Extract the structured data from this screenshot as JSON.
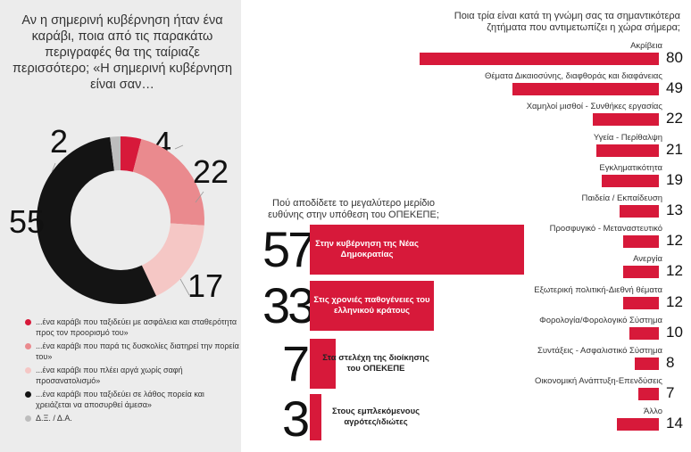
{
  "left": {
    "question": "Αν η σημερινή κυβέρνηση ήταν ένα καράβι, ποια από τις παρακάτω περιγραφές θα της ταίριαζε περισσότερο; «Η σημερινή κυβέρνηση είναι σαν…",
    "legend": [
      {
        "label": "...ένα καράβι που ταξιδεύει με ασφάλεια και σταθερότητα προς τον προορισμό του»",
        "color": "#d7193a"
      },
      {
        "label": "...ένα καράβι που παρά τις δυσκολίες διατηρεί την πορεία του»",
        "color": "#ea8a8e"
      },
      {
        "label": "...ένα καράβι που πλέει αργά χωρίς σαφή προσανατολισμό»",
        "color": "#f5c7c5"
      },
      {
        "label": "...ένα καράβι που ταξιδεύει σε λάθος πορεία και χρειάζεται να αποσυρθεί άμεσα»",
        "color": "#141414"
      },
      {
        "label": "Δ.Ξ. / Δ.Α.",
        "color": "#bdbdbd"
      }
    ]
  },
  "right": {
    "title": "Ποια τρία είναι κατά τη γνώμη σας τα σημαντικότερα ζητήματα που αντιμετωπίζει η χώρα σήμερα;"
  },
  "responsibility": {
    "title": "Πού αποδίδετε το μεγαλύτερο μερίδιο ευθύνης στην υπόθεση του ΟΠΕΚΕΠΕ;"
  },
  "chart_data": [
    {
      "type": "pie",
      "variant": "donut",
      "categories": [
        "...ένα καράβι που ταξιδεύει με ασφάλεια και σταθερότητα προς τον προορισμό του»",
        "...ένα καράβι που παρά τις δυσκολίες διατηρεί την πορεία του»",
        "...ένα καράβι που πλέει αργά χωρίς σαφή προσανατολισμό»",
        "...ένα καράβι που ταξιδεύει σε λάθος πορεία και χρειάζεται να αποσυρθεί άμεσα»",
        "Δ.Ξ. / Δ.Α."
      ],
      "values": [
        4,
        22,
        17,
        55,
        2
      ],
      "colors": [
        "#d7193a",
        "#ea8a8e",
        "#f5c7c5",
        "#141414",
        "#bdbdbd"
      ]
    },
    {
      "type": "bar",
      "orientation": "horizontal",
      "title": "Ποια τρία είναι κατά τη γνώμη σας τα σημαντικότερα ζητήματα που αντιμετωπίζει η χώρα σήμερα;",
      "categories": [
        "Ακρίβεια",
        "Θέματα Δικαιοσύνης,  διαφθοράς και διαφάνειας",
        "Χαμηλοί μισθοί - Συνθήκες εργασίας",
        "Υγεία - Περίθαλψη",
        "Εγκληματικότητα",
        "Παιδεία / Εκπαίδευση",
        "Προσφυγικό - Μεταναστευτικό",
        "Ανεργία",
        "Εξωτερική πολιτική-Διεθνή θέματα",
        "Φορολογία/Φορολογικό Σύστημα",
        "Συντάξεις - Ασφαλιστικό Σύστημα",
        "Οικονομική Ανάπτυξη-Επενδύσεις",
        "Άλλο"
      ],
      "values": [
        80,
        49,
        22,
        21,
        19,
        13,
        12,
        12,
        12,
        10,
        8,
        7,
        14
      ],
      "color": "#d7193a"
    },
    {
      "type": "bar",
      "orientation": "horizontal",
      "title": "Πού αποδίδετε το μεγαλύτερο μερίδιο ευθύνης στην υπόθεση του ΟΠΕΚΕΠΕ;",
      "categories": [
        "Στην κυβέρνηση της Νέας Δημοκρατίας",
        "Στις χρονιές παθογένειες του ελληνικού κράτους",
        "Στα στελέχη της διοίκησης του ΟΠΕΚΕΠΕ",
        "Στους εμπλεκόμενους αγρότες/ιδιώτες"
      ],
      "values": [
        57,
        33,
        7,
        3
      ],
      "color": "#d7193a"
    }
  ]
}
